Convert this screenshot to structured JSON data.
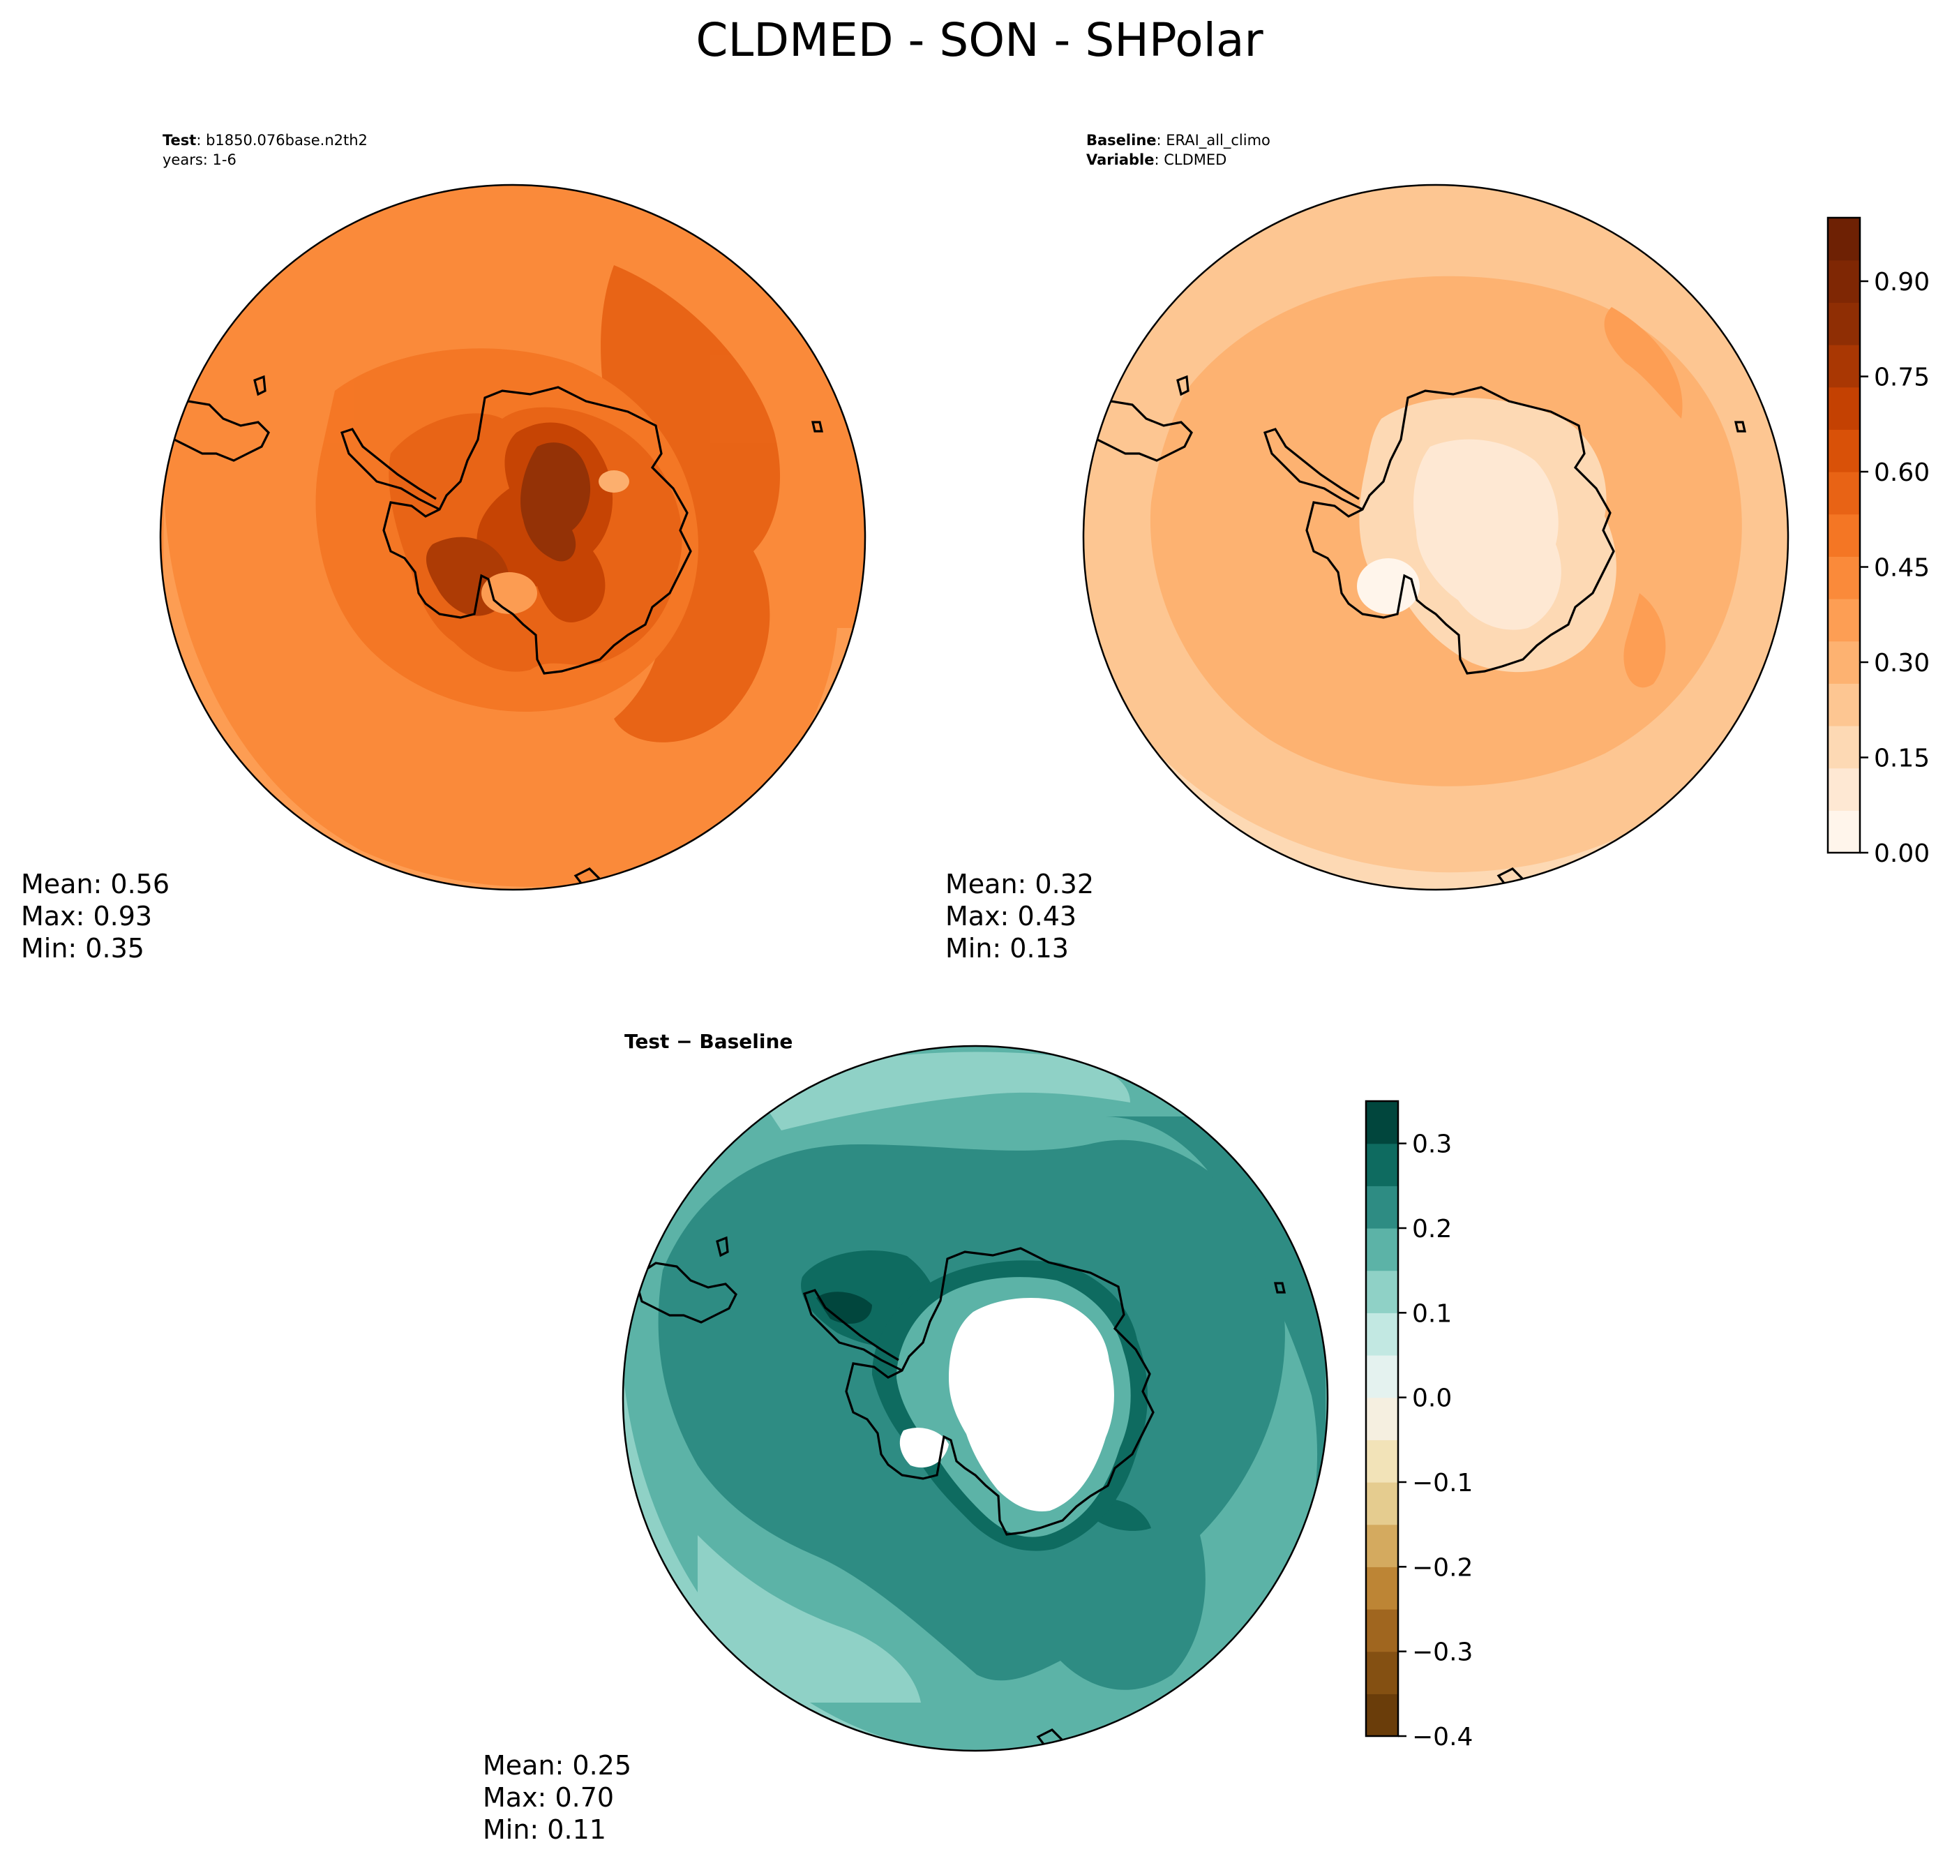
{
  "figure": {
    "title": "CLDMED - SON - SHPolar"
  },
  "panels": {
    "test": {
      "header_bold": "Test",
      "header_value": ": b1850.076base.n2th2",
      "header_line2": "years: 1-6",
      "stats": {
        "mean": "Mean:  0.56",
        "max": "Max:  0.93",
        "min": "Min:  0.35"
      }
    },
    "baseline": {
      "header_bold": "Baseline",
      "header_value": ": ERAI_all_climo",
      "header_bold2": "Variable",
      "header_value2": ": CLDMED",
      "stats": {
        "mean": "Mean:  0.32",
        "max": "Max:  0.43",
        "min": "Min:  0.13"
      }
    },
    "diff": {
      "header": "Test − Baseline",
      "stats": {
        "mean": "Mean:  0.25",
        "max": "Max:  0.70",
        "min": "Min:  0.11"
      }
    }
  },
  "colorbars": {
    "oranges": {
      "range": [
        0.0,
        1.0
      ],
      "ticks": [
        {
          "v": 0.0,
          "label": "0.00"
        },
        {
          "v": 0.15,
          "label": "0.15"
        },
        {
          "v": 0.3,
          "label": "0.30"
        },
        {
          "v": 0.45,
          "label": "0.45"
        },
        {
          "v": 0.6,
          "label": "0.60"
        },
        {
          "v": 0.75,
          "label": "0.75"
        },
        {
          "v": 0.9,
          "label": "0.90"
        }
      ],
      "colors": [
        "#fff5eb",
        "#fee8d3",
        "#fdd9b4",
        "#fdc692",
        "#fdb271",
        "#fd9e54",
        "#fa8a3a",
        "#f47624",
        "#e86315",
        "#d95108",
        "#c44102",
        "#a93703",
        "#8f2e04",
        "#7f2704",
        "#6e2104"
      ]
    },
    "brbg": {
      "range": [
        -0.4,
        0.35
      ],
      "ticks": [
        {
          "v": -0.4,
          "label": "−0.4"
        },
        {
          "v": -0.3,
          "label": "−0.3"
        },
        {
          "v": -0.2,
          "label": "−0.2"
        },
        {
          "v": -0.1,
          "label": "−0.1"
        },
        {
          "v": 0.0,
          "label": "0.0"
        },
        {
          "v": 0.1,
          "label": "0.1"
        },
        {
          "v": 0.2,
          "label": "0.2"
        },
        {
          "v": 0.3,
          "label": "0.3"
        }
      ],
      "colors": [
        "#6a3d0a",
        "#845012",
        "#a0661f",
        "#bd8535",
        "#d4aa5f",
        "#e5cc8f",
        "#f2e3b8",
        "#f5efe0",
        "#e4f2ef",
        "#c2e8e2",
        "#8fd1c6",
        "#5cb3a7",
        "#2e8c83",
        "#0e6b60",
        "#01463d"
      ]
    }
  }
}
